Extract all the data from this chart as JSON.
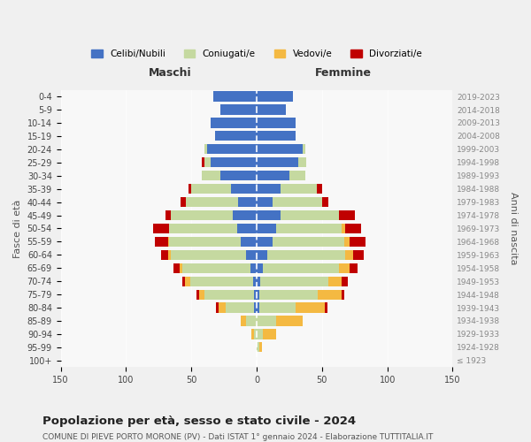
{
  "age_groups": [
    "100+",
    "95-99",
    "90-94",
    "85-89",
    "80-84",
    "75-79",
    "70-74",
    "65-69",
    "60-64",
    "55-59",
    "50-54",
    "45-49",
    "40-44",
    "35-39",
    "30-34",
    "25-29",
    "20-24",
    "15-19",
    "10-14",
    "5-9",
    "0-4"
  ],
  "birth_years": [
    "≤ 1923",
    "1924-1928",
    "1929-1933",
    "1934-1938",
    "1939-1943",
    "1944-1948",
    "1949-1953",
    "1954-1958",
    "1959-1963",
    "1964-1968",
    "1969-1973",
    "1974-1978",
    "1979-1983",
    "1984-1988",
    "1989-1993",
    "1994-1998",
    "1999-2003",
    "2004-2008",
    "2009-2013",
    "2014-2018",
    "2019-2023"
  ],
  "maschi": {
    "celibi": [
      0,
      0,
      0,
      0,
      2,
      2,
      3,
      5,
      8,
      12,
      15,
      18,
      14,
      20,
      28,
      35,
      38,
      32,
      35,
      28,
      33
    ],
    "coniugati": [
      0,
      0,
      2,
      8,
      22,
      38,
      48,
      52,
      58,
      55,
      52,
      48,
      40,
      30,
      14,
      5,
      2,
      0,
      0,
      0,
      0
    ],
    "vedovi": [
      0,
      0,
      2,
      4,
      5,
      4,
      4,
      2,
      2,
      1,
      0,
      0,
      0,
      0,
      0,
      0,
      0,
      0,
      0,
      0,
      0
    ],
    "divorziati": [
      0,
      0,
      0,
      0,
      2,
      2,
      2,
      5,
      5,
      10,
      12,
      4,
      4,
      2,
      0,
      2,
      0,
      0,
      0,
      0,
      0
    ]
  },
  "femmine": {
    "nubili": [
      0,
      0,
      0,
      0,
      2,
      2,
      3,
      5,
      8,
      12,
      15,
      18,
      12,
      18,
      25,
      32,
      35,
      30,
      30,
      22,
      28
    ],
    "coniugate": [
      0,
      2,
      5,
      15,
      28,
      45,
      52,
      58,
      60,
      55,
      50,
      45,
      38,
      28,
      12,
      6,
      2,
      0,
      0,
      0,
      0
    ],
    "vedove": [
      0,
      2,
      10,
      20,
      22,
      18,
      10,
      8,
      6,
      4,
      3,
      0,
      0,
      0,
      0,
      0,
      0,
      0,
      0,
      0,
      0
    ],
    "divorziate": [
      0,
      0,
      0,
      0,
      2,
      2,
      5,
      6,
      8,
      12,
      12,
      12,
      5,
      4,
      0,
      0,
      0,
      0,
      0,
      0,
      0
    ]
  },
  "colors": {
    "celibi": "#4472C4",
    "coniugati": "#c5d9a0",
    "vedovi": "#F4B942",
    "divorziati": "#C00000"
  },
  "title": "Popolazione per età, sesso e stato civile - 2024",
  "subtitle": "COMUNE DI PIEVE PORTO MORONE (PV) - Dati ISTAT 1° gennaio 2024 - Elaborazione TUTTITALIA.IT",
  "xlabel_left": "Maschi",
  "xlabel_right": "Femmine",
  "ylabel_left": "Fasce di età",
  "ylabel_right": "Anni di nascita",
  "xlim": 150,
  "legend_labels": [
    "Celibi/Nubili",
    "Coniugati/e",
    "Vedovi/e",
    "Divorziati/e"
  ],
  "bg_color": "#f0f0f0",
  "plot_bg": "#f8f8f8"
}
